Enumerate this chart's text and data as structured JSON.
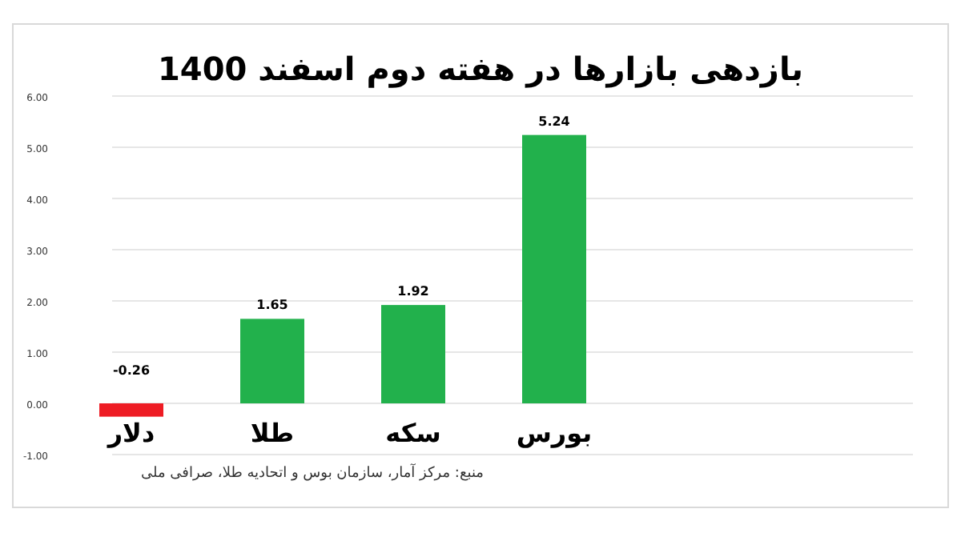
{
  "chart_data": {
    "type": "bar",
    "title": "بازدهی بازارها در هفته دوم اسفند 1400",
    "categories": [
      "دلار",
      "طلا",
      "سکه",
      "بورس"
    ],
    "values": [
      -0.26,
      1.65,
      1.92,
      5.24
    ],
    "colors": [
      "#ee1c24",
      "#22b14c",
      "#22b14c",
      "#22b14c"
    ],
    "ylim": [
      -1,
      6
    ],
    "yticks": [
      {
        "value": -1,
        "label": "-1.00"
      },
      {
        "value": 0,
        "label": "0.00"
      },
      {
        "value": 1,
        "label": "1.00"
      },
      {
        "value": 2,
        "label": "2.00"
      },
      {
        "value": 3,
        "label": "3.00"
      },
      {
        "value": 4,
        "label": "4.00"
      },
      {
        "value": 5,
        "label": "5.00"
      },
      {
        "value": 6,
        "label": "6.00"
      }
    ],
    "grid": "y",
    "data_labels": true,
    "annotations": [
      "منبع: مرکز آمار، سازمان بوس و اتحادیه طلا، صرافی ملی"
    ]
  }
}
